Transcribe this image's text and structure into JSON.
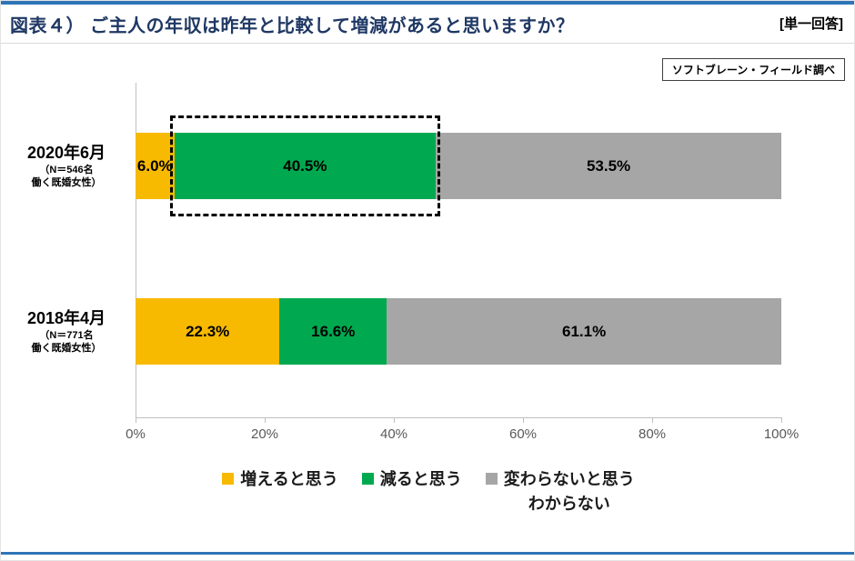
{
  "header": {
    "title": "図表４） ご主人の年収は昨年と比較して増減があると思いますか？",
    "answer_type": "[単一回答]"
  },
  "source_note": "ソフトブレーン・フィールド調べ",
  "chart_data": {
    "type": "bar",
    "stacked": true,
    "orientation": "horizontal",
    "grid": false,
    "legend_position": "bottom",
    "xlim": [
      0,
      100
    ],
    "x_ticks": [
      "0%",
      "20%",
      "40%",
      "60%",
      "80%",
      "100%"
    ],
    "categories": [
      {
        "label": "2020年6月",
        "note_lines": [
          "（N＝546名",
          "働く既婚女性）"
        ]
      },
      {
        "label": "2018年4月",
        "note_lines": [
          "（N＝771名",
          "働く既婚女性）"
        ]
      }
    ],
    "series": [
      {
        "name_lines": [
          "増えると思う"
        ],
        "color": "#F7BA00",
        "values": [
          6.0,
          22.3
        ]
      },
      {
        "name_lines": [
          "減ると思う"
        ],
        "color": "#00A94F",
        "values": [
          40.5,
          16.6
        ]
      },
      {
        "name_lines": [
          "変わらないと思う",
          "わからない"
        ],
        "color": "#A6A6A6",
        "values": [
          53.5,
          61.1
        ]
      }
    ],
    "value_labels": [
      [
        "6.0%",
        "40.5%",
        "53.5%"
      ],
      [
        "22.3%",
        "16.6%",
        "61.1%"
      ]
    ],
    "highlight": {
      "row": 0,
      "segment": 1,
      "style": "dashed-rectangle"
    }
  },
  "colors": {
    "accent_rule": "#2E75B6",
    "title_text": "#1F3864",
    "axis_text": "#595959",
    "axis_line": "#BFBFBF"
  }
}
